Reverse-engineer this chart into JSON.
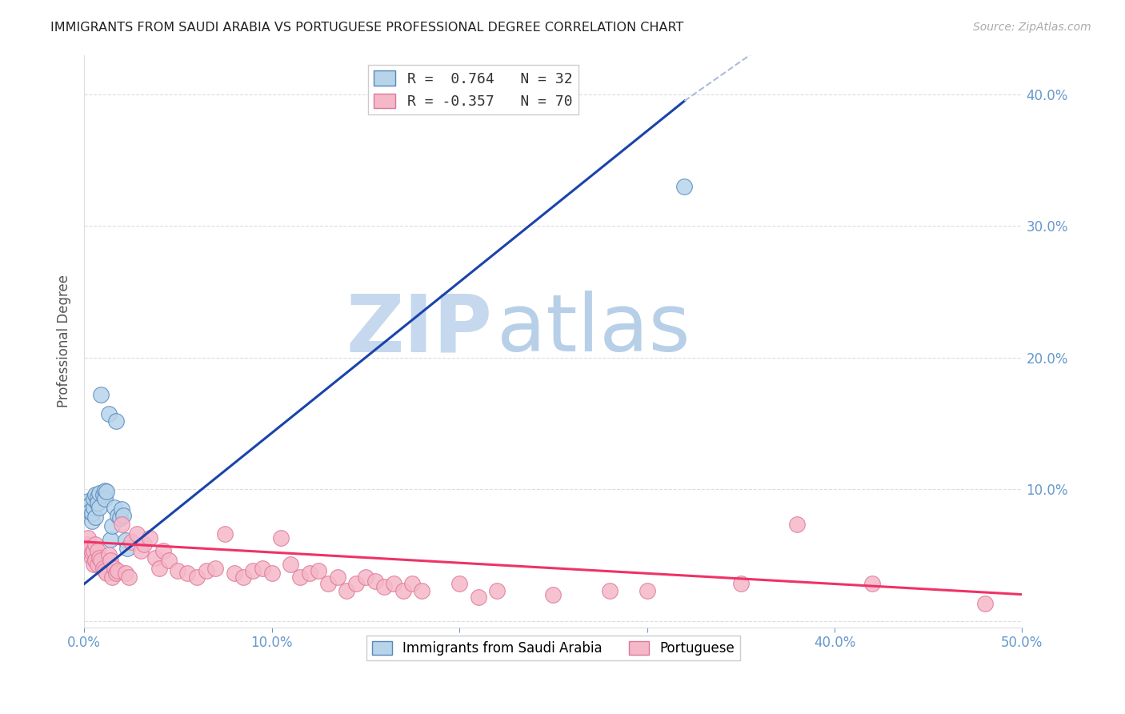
{
  "title": "IMMIGRANTS FROM SAUDI ARABIA VS PORTUGUESE PROFESSIONAL DEGREE CORRELATION CHART",
  "source": "Source: ZipAtlas.com",
  "ylabel": "Professional Degree",
  "xlim": [
    0.0,
    0.5
  ],
  "ylim": [
    -0.005,
    0.43
  ],
  "xticks": [
    0.0,
    0.1,
    0.2,
    0.3,
    0.4,
    0.5
  ],
  "xtick_labels": [
    "0.0%",
    "10.0%",
    "20.0%",
    "30.0%",
    "40.0%",
    "50.0%"
  ],
  "yticks": [
    0.0,
    0.1,
    0.2,
    0.3,
    0.4
  ],
  "right_ytick_labels": [
    "",
    "10.0%",
    "20.0%",
    "30.0%",
    "40.0%"
  ],
  "watermark_zip": "ZIP",
  "watermark_atlas": "atlas",
  "saudi_color": "#b8d4ea",
  "saudi_edge_color": "#5588bb",
  "portuguese_color": "#f5b8c8",
  "portuguese_edge_color": "#dd7799",
  "saudi_line_color": "#1a44aa",
  "saudi_line_dash_color": "#aabbdd",
  "portuguese_line_color": "#ee3366",
  "title_color": "#222222",
  "axis_color": "#6699cc",
  "grid_color": "#dddddd",
  "background_color": "#ffffff",
  "saudi_points": [
    [
      0.001,
      0.087
    ],
    [
      0.002,
      0.091
    ],
    [
      0.003,
      0.088
    ],
    [
      0.003,
      0.083
    ],
    [
      0.004,
      0.076
    ],
    [
      0.004,
      0.082
    ],
    [
      0.005,
      0.086
    ],
    [
      0.005,
      0.093
    ],
    [
      0.006,
      0.096
    ],
    [
      0.006,
      0.079
    ],
    [
      0.007,
      0.089
    ],
    [
      0.007,
      0.094
    ],
    [
      0.007,
      0.09
    ],
    [
      0.008,
      0.097
    ],
    [
      0.008,
      0.086
    ],
    [
      0.009,
      0.172
    ],
    [
      0.01,
      0.096
    ],
    [
      0.011,
      0.099
    ],
    [
      0.011,
      0.093
    ],
    [
      0.012,
      0.098
    ],
    [
      0.013,
      0.157
    ],
    [
      0.014,
      0.062
    ],
    [
      0.015,
      0.072
    ],
    [
      0.016,
      0.086
    ],
    [
      0.017,
      0.152
    ],
    [
      0.018,
      0.08
    ],
    [
      0.019,
      0.078
    ],
    [
      0.02,
      0.085
    ],
    [
      0.021,
      0.08
    ],
    [
      0.022,
      0.061
    ],
    [
      0.023,
      0.055
    ],
    [
      0.32,
      0.33
    ]
  ],
  "portuguese_points": [
    [
      0.001,
      0.058
    ],
    [
      0.002,
      0.063
    ],
    [
      0.003,
      0.055
    ],
    [
      0.004,
      0.048
    ],
    [
      0.004,
      0.052
    ],
    [
      0.005,
      0.043
    ],
    [
      0.005,
      0.053
    ],
    [
      0.006,
      0.058
    ],
    [
      0.006,
      0.046
    ],
    [
      0.007,
      0.053
    ],
    [
      0.007,
      0.043
    ],
    [
      0.008,
      0.048
    ],
    [
      0.009,
      0.046
    ],
    [
      0.01,
      0.04
    ],
    [
      0.011,
      0.038
    ],
    [
      0.012,
      0.036
    ],
    [
      0.013,
      0.05
    ],
    [
      0.014,
      0.046
    ],
    [
      0.015,
      0.033
    ],
    [
      0.016,
      0.04
    ],
    [
      0.017,
      0.036
    ],
    [
      0.018,
      0.038
    ],
    [
      0.02,
      0.073
    ],
    [
      0.022,
      0.036
    ],
    [
      0.024,
      0.033
    ],
    [
      0.025,
      0.06
    ],
    [
      0.028,
      0.066
    ],
    [
      0.03,
      0.053
    ],
    [
      0.032,
      0.058
    ],
    [
      0.035,
      0.063
    ],
    [
      0.038,
      0.048
    ],
    [
      0.04,
      0.04
    ],
    [
      0.042,
      0.053
    ],
    [
      0.045,
      0.046
    ],
    [
      0.05,
      0.038
    ],
    [
      0.055,
      0.036
    ],
    [
      0.06,
      0.033
    ],
    [
      0.065,
      0.038
    ],
    [
      0.07,
      0.04
    ],
    [
      0.075,
      0.066
    ],
    [
      0.08,
      0.036
    ],
    [
      0.085,
      0.033
    ],
    [
      0.09,
      0.038
    ],
    [
      0.095,
      0.04
    ],
    [
      0.1,
      0.036
    ],
    [
      0.105,
      0.063
    ],
    [
      0.11,
      0.043
    ],
    [
      0.115,
      0.033
    ],
    [
      0.12,
      0.036
    ],
    [
      0.125,
      0.038
    ],
    [
      0.13,
      0.028
    ],
    [
      0.135,
      0.033
    ],
    [
      0.14,
      0.023
    ],
    [
      0.145,
      0.028
    ],
    [
      0.15,
      0.033
    ],
    [
      0.155,
      0.03
    ],
    [
      0.16,
      0.026
    ],
    [
      0.165,
      0.028
    ],
    [
      0.17,
      0.023
    ],
    [
      0.175,
      0.028
    ],
    [
      0.18,
      0.023
    ],
    [
      0.2,
      0.028
    ],
    [
      0.21,
      0.018
    ],
    [
      0.22,
      0.023
    ],
    [
      0.25,
      0.02
    ],
    [
      0.28,
      0.023
    ],
    [
      0.3,
      0.023
    ],
    [
      0.35,
      0.028
    ],
    [
      0.38,
      0.073
    ],
    [
      0.42,
      0.028
    ],
    [
      0.48,
      0.013
    ]
  ],
  "saudi_line_solid": {
    "x0": 0.0,
    "y0": 0.028,
    "x1": 0.32,
    "y1": 0.395
  },
  "saudi_line_dash": {
    "x0": 0.32,
    "y0": 0.395,
    "x1": 0.36,
    "y1": 0.435
  },
  "portuguese_line": {
    "x0": 0.0,
    "y0": 0.06,
    "x1": 0.5,
    "y1": 0.02
  }
}
